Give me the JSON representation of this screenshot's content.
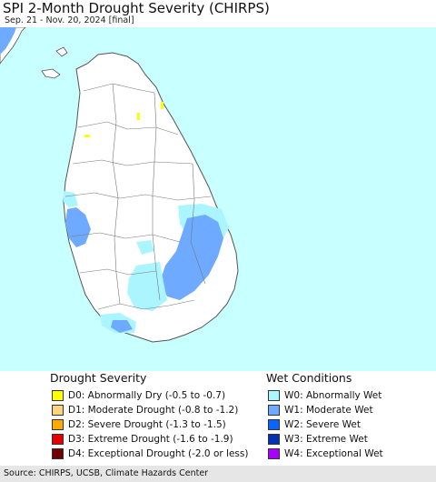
{
  "header": {
    "title": "SPI 2-Month Drought Severity (CHIRPS)",
    "subtitle": "Sep. 21 - Nov. 20, 2024 [final]"
  },
  "map": {
    "ocean_color": "#c8ffff",
    "land_color": "#ffffff",
    "border_color": "#555555"
  },
  "legend": {
    "drought": {
      "title": "Drought Severity",
      "items": [
        {
          "label": "D0: Abnormally Dry (-0.5 to -0.7)",
          "color": "#ffff00"
        },
        {
          "label": "D1: Moderate Drought (-0.8 to -1.2)",
          "color": "#fcd37f"
        },
        {
          "label": "D2: Severe Drought (-1.3 to -1.5)",
          "color": "#ffaa00"
        },
        {
          "label": "D3: Extreme Drought (-1.6 to -1.9)",
          "color": "#e60000"
        },
        {
          "label": "D4: Exceptional Drought (-2.0 or less)",
          "color": "#730000"
        }
      ]
    },
    "wet": {
      "title": "Wet Conditions",
      "items": [
        {
          "label": "W0: Abnormally Wet",
          "color": "#aaf5ff"
        },
        {
          "label": "W1: Moderate Wet",
          "color": "#6eaaff"
        },
        {
          "label": "W2: Severe Wet",
          "color": "#0a64ff"
        },
        {
          "label": "W3: Extreme Wet",
          "color": "#0032b4"
        },
        {
          "label": "W4: Exceptional Wet",
          "color": "#aa00ff"
        }
      ]
    }
  },
  "footer": {
    "source": "Source: CHIRPS, UCSB, Climate Hazards Center"
  }
}
